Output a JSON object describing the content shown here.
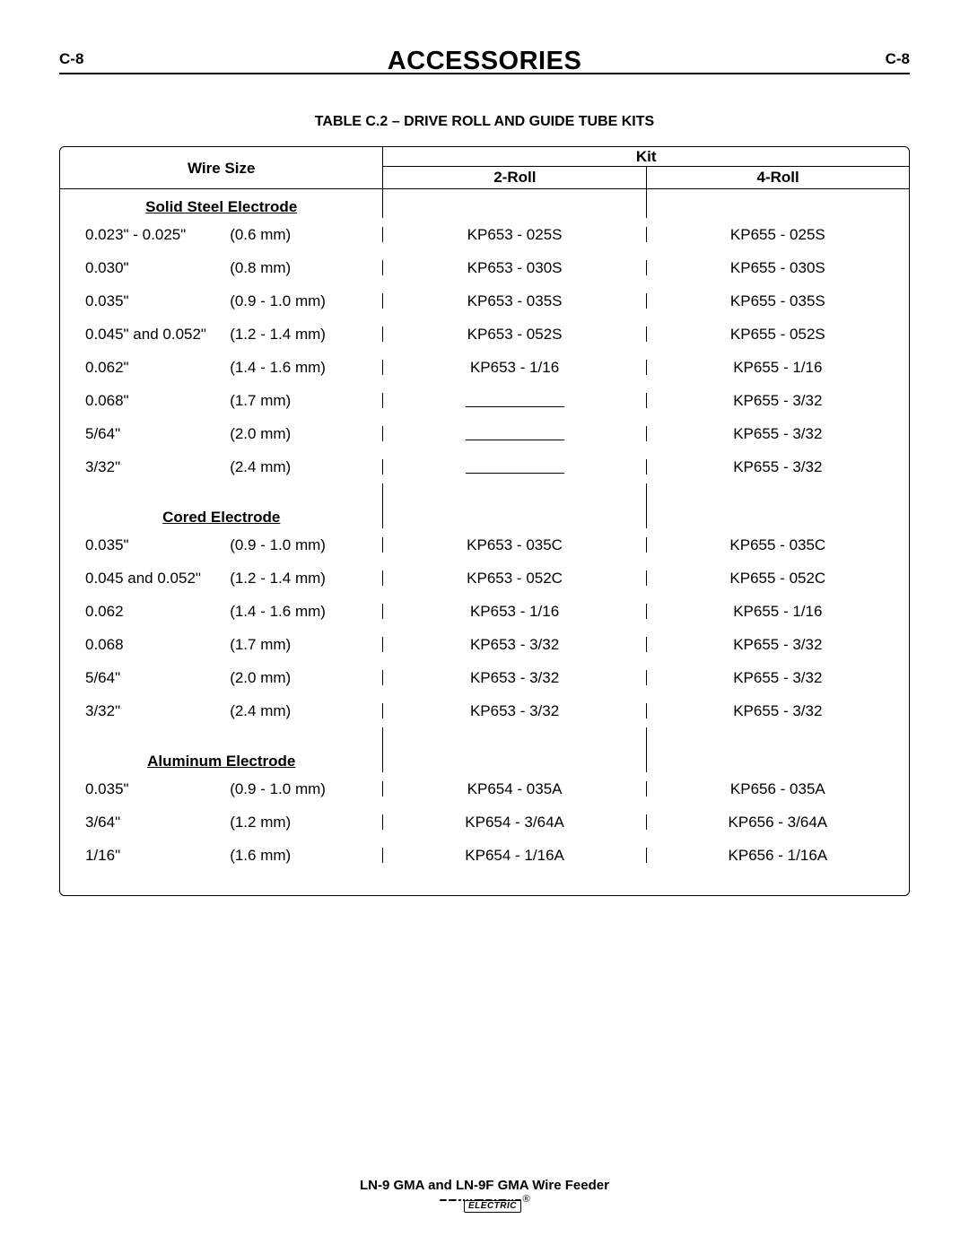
{
  "header": {
    "page_left": "C-8",
    "title": "ACCESSORIES",
    "page_right": "C-8"
  },
  "table": {
    "title": "TABLE C.2 – DRIVE ROLL AND GUIDE TUBE KITS",
    "head": {
      "wire_size": "Wire Size",
      "kit": "Kit",
      "roll2": "2-Roll",
      "roll4": "4-Roll"
    },
    "sections": [
      {
        "title": "Solid Steel Electrode",
        "rows": [
          {
            "imp": "0.023\" - 0.025\"",
            "met": "(0.6 mm)",
            "r2": "KP653 - 025S",
            "r4": "KP655 - 025S"
          },
          {
            "imp": "0.030\"",
            "met": "(0.8 mm)",
            "r2": "KP653 - 030S",
            "r4": "KP655 - 030S"
          },
          {
            "imp": "0.035\"",
            "met": "(0.9 - 1.0 mm)",
            "r2": "KP653 - 035S",
            "r4": "KP655 - 035S"
          },
          {
            "imp": "0.045\" and 0.052\"",
            "met": "(1.2 - 1.4 mm)",
            "r2": "KP653 - 052S",
            "r4": "KP655 - 052S"
          },
          {
            "imp": "0.062\"",
            "met": "(1.4 - 1.6 mm)",
            "r2": "KP653 - 1/16",
            "r4": "KP655 - 1/16"
          },
          {
            "imp": "0.068\"",
            "met": "(1.7 mm)",
            "r2": "",
            "r4": "KP655 - 3/32",
            "blank2": true
          },
          {
            "imp": "5/64\"",
            "met": "(2.0 mm)",
            "r2": "",
            "r4": "KP655 - 3/32",
            "blank2": true
          },
          {
            "imp": "3/32\"",
            "met": "(2.4 mm)",
            "r2": "",
            "r4": "KP655 - 3/32",
            "blank2": true
          }
        ]
      },
      {
        "title": "Cored Electrode",
        "rows": [
          {
            "imp": "0.035\"",
            "met": "(0.9 - 1.0 mm)",
            "r2": "KP653 - 035C",
            "r4": "KP655 - 035C"
          },
          {
            "imp": "0.045 and 0.052\"",
            "met": "(1.2 - 1.4 mm)",
            "r2": "KP653 - 052C",
            "r4": "KP655 - 052C"
          },
          {
            "imp": "0.062",
            "met": "(1.4 - 1.6 mm)",
            "r2": "KP653 - 1/16",
            "r4": "KP655 - 1/16"
          },
          {
            "imp": "0.068",
            "met": "(1.7 mm)",
            "r2": "KP653 - 3/32",
            "r4": "KP655 - 3/32"
          },
          {
            "imp": "5/64\"",
            "met": "(2.0 mm)",
            "r2": "KP653 - 3/32",
            "r4": "KP655 - 3/32"
          },
          {
            "imp": "3/32\"",
            "met": "(2.4 mm)",
            "r2": "KP653 - 3/32",
            "r4": "KP655 - 3/32"
          }
        ]
      },
      {
        "title": "Aluminum Electrode",
        "rows": [
          {
            "imp": "0.035\"",
            "met": "(0.9 - 1.0 mm)",
            "r2": "KP654 - 035A",
            "r4": "KP656 - 035A"
          },
          {
            "imp": "3/64\"",
            "met": "(1.2 mm)",
            "r2": "KP654 - 3/64A",
            "r4": "KP656 - 3/64A"
          },
          {
            "imp": "1/16\"",
            "met": "(1.6 mm)",
            "r2": "KP654 - 1/16A",
            "r4": "KP656 - 1/16A"
          }
        ]
      }
    ]
  },
  "footer": {
    "product": "LN-9 GMA and LN-9F GMA Wire Feeder",
    "brand_top": "LINCOLN",
    "brand_reg": "®",
    "brand_bot": "ELECTRIC"
  }
}
